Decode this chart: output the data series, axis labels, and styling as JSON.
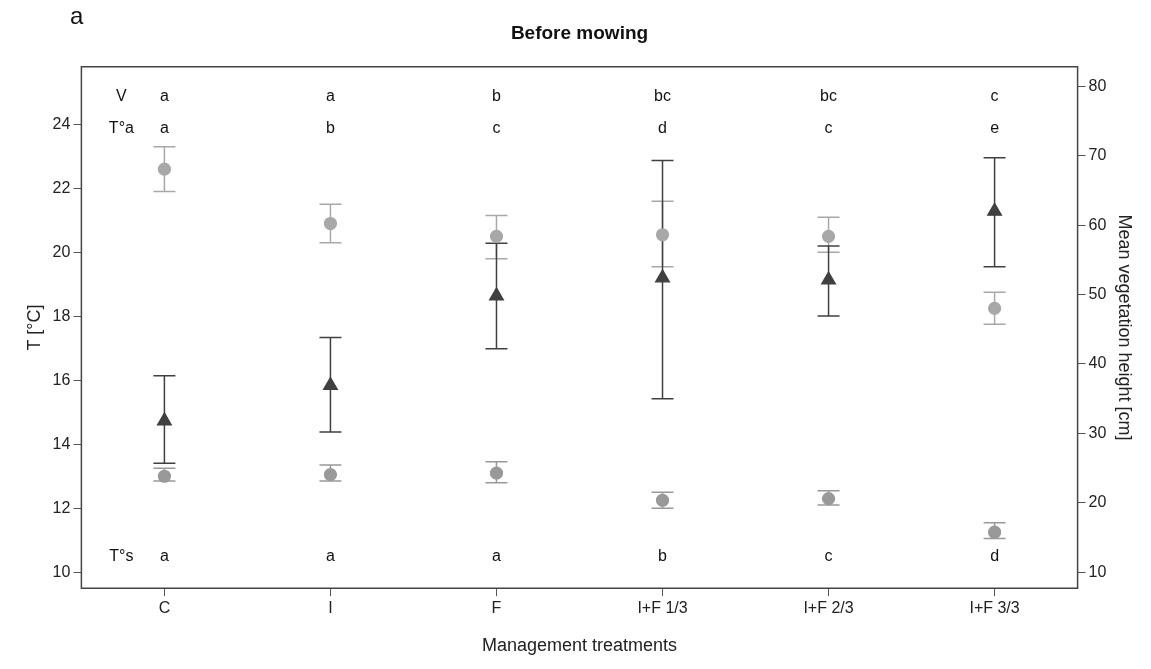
{
  "chart_data": {
    "type": "scatter",
    "title": "Before mowing",
    "xlabel": "Management treatments",
    "ylabel": "T [°C]",
    "y2label": "Mean vegetation height [cm]",
    "categories": [
      "C",
      "I",
      "F",
      "I+F 1/3",
      "I+F 2/3",
      "I+F 3/3"
    ],
    "series": [
      {
        "color": "#a8a8a8",
        "marker": "circle",
        "values": [
          22.6,
          20.9,
          20.5,
          20.55,
          20.5,
          18.25
        ],
        "errors": [
          [
            21.9,
            23.3
          ],
          [
            20.3,
            21.5
          ],
          [
            19.8,
            21.15
          ],
          [
            19.55,
            21.6
          ],
          [
            20.0,
            21.1
          ],
          [
            17.75,
            18.75
          ]
        ]
      },
      {
        "color": "#999999",
        "marker": "circle",
        "values": [
          13.0,
          13.05,
          13.1,
          12.25,
          12.3,
          11.25
        ],
        "errors": [
          [
            12.85,
            13.25
          ],
          [
            12.85,
            13.35
          ],
          [
            12.8,
            13.45
          ],
          [
            12.0,
            12.5
          ],
          [
            12.1,
            12.55
          ],
          [
            11.05,
            11.55
          ]
        ]
      },
      {
        "color": "#404040",
        "marker": "triangle",
        "axis": "y2",
        "values": [
          31.8,
          36.9,
          49.8,
          52.4,
          52.1,
          62.0
        ],
        "errors": [
          [
            25.7,
            38.3
          ],
          [
            30.2,
            43.8
          ],
          [
            42.2,
            57.4
          ],
          [
            35.0,
            69.3
          ],
          [
            46.9,
            57.0
          ],
          [
            54.0,
            69.7
          ]
        ]
      }
    ],
    "ylim": [
      9.5,
      25.8
    ],
    "yticks": [
      10,
      12,
      14,
      16,
      18,
      20,
      22,
      24
    ],
    "y2lim": [
      7.7,
      82.8
    ],
    "y2ticks": [
      10,
      20,
      30,
      40,
      50,
      60,
      70,
      80
    ],
    "grid": false,
    "legend": false,
    "annotations": [
      "a",
      "V",
      "a",
      "a",
      "b",
      "bc",
      "bc",
      "c",
      "T°a",
      "a",
      "b",
      "c",
      "d",
      "c",
      "e",
      "T°s",
      "a",
      "a",
      "a",
      "b",
      "c",
      "d"
    ]
  }
}
